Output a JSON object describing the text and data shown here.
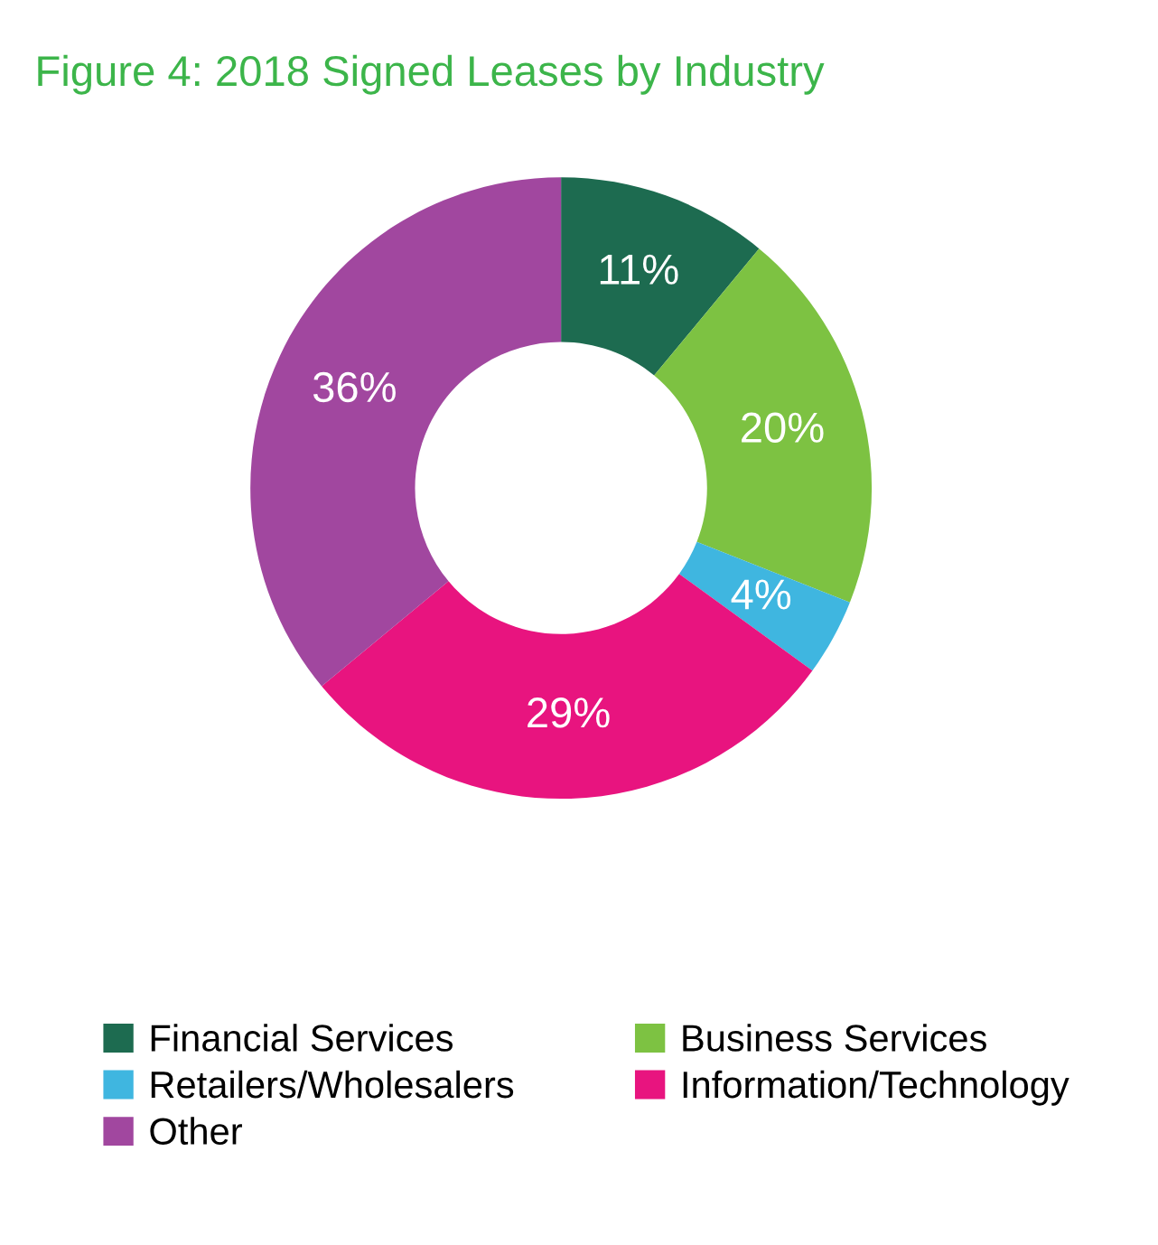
{
  "chart_data": {
    "type": "donut",
    "title": "Figure 4: 2018 Signed Leases by Industry",
    "categories": [
      "Financial Services",
      "Business Services",
      "Retailers/Wholesalers",
      "Information/Technology",
      "Other"
    ],
    "values": [
      11,
      20,
      4,
      29,
      36
    ],
    "colors": [
      "#1d6b50",
      "#7dc242",
      "#3fb6e0",
      "#e8147f",
      "#a1479f"
    ],
    "value_labels": [
      "11%",
      "20%",
      "4%",
      "29%",
      "36%"
    ],
    "legend": "bottom"
  }
}
